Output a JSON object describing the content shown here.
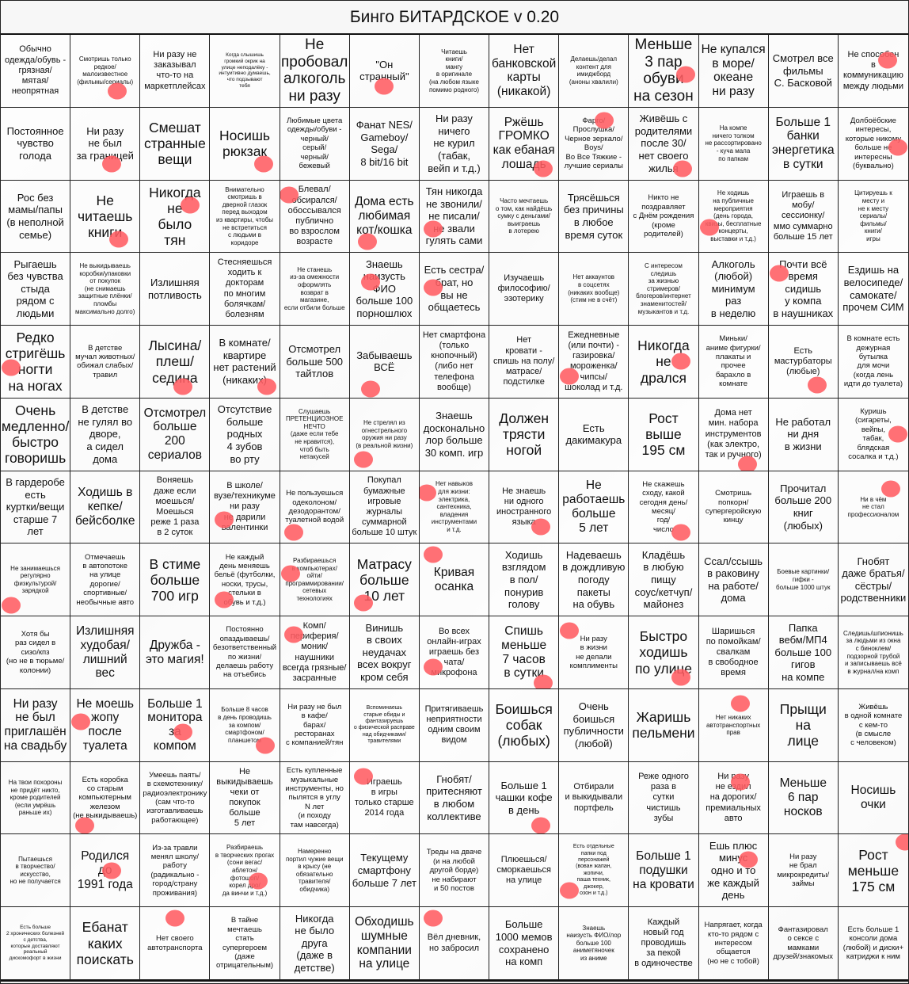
{
  "title": "Бинго БИТАРДСКОЕ v 0.20",
  "stamp_color": "#ff5c62",
  "cells": [
    [
      {
        "text": "Обычно\nодежда/обувь -\nгрязная/\nмятая/\nнеопрятная",
        "marked": false
      },
      {
        "text": "Смотришь только\nредкое/\nмалоизвестное\n(фильмы/сериалы)",
        "marked": true
      },
      {
        "text": "Ни разу не\nзаказывал\nчто-то на\nмаркетплейсах",
        "marked": false
      },
      {
        "text": "Когда слышишь\nгромкий окрик на\nулице неподалёку -\nинтуитивно думаешь,\nчто подзывают\nтебя",
        "marked": false
      },
      {
        "text": "Не\nпробовал\nалкоголь\nни разу",
        "marked": false
      },
      {
        "text": "\"Он странный\"",
        "marked": true
      },
      {
        "text": "Читаешь\nкниги/\nмангу\nв оригинале\n(на любом языке\nпомимо родного)",
        "marked": false
      },
      {
        "text": "Нет\nбанковской\nкарты\n(никакой)",
        "marked": false
      },
      {
        "text": "Делаешь/делал\nконтент для\nимиджборд\n(аноны хвалили)",
        "marked": false
      },
      {
        "text": "Меньше\n3 пар\nобуви\nна сезон",
        "marked": true
      },
      {
        "text": "Не купался\nв море/\nокеане\nни разу",
        "marked": false
      },
      {
        "text": "Смотрел все\nфильмы\nС. Басковой",
        "marked": false
      },
      {
        "text": "Не способен\nв\nкоммуникацию\nмежду людьми",
        "marked": true
      }
    ],
    [
      {
        "text": "Постоянное\nчувство\nголода",
        "marked": false
      },
      {
        "text": "Ни разу\nне был\nза границей",
        "marked": true
      },
      {
        "text": "Смешат\nстранные\nвещи",
        "marked": false
      },
      {
        "text": "Носишь\nрюкзак",
        "marked": true
      },
      {
        "text": "Любимые цвета\nодежды/обуви -\nчерный/\nсерый/\nчерный/\nбежевый",
        "marked": false
      },
      {
        "text": "Фанат NES/\nGameboy/\nSega/\n8 bit/16 bit",
        "marked": false
      },
      {
        "text": "Ни разу\nничего\nне курил\n(табак,\nвейп и т.д.)",
        "marked": false
      },
      {
        "text": "Ржёшь\nГРОМКО\nкак ебаная\nлошадь",
        "marked": true
      },
      {
        "text": "Фарго/\nПрослушка/\nЧерное зеркало/\nBoys/\nВо Все Тяжкие -\nлучшие сериалы",
        "marked": true
      },
      {
        "text": "Живёшь с\nродителями\nпосле 30/\nнет своего\nжилья",
        "marked": true
      },
      {
        "text": "На компе\nничего толком\nне рассортировано\n- куча мала\nпо папкам",
        "marked": false
      },
      {
        "text": "Больше 1\nбанки\nэнергетика\nв сутки",
        "marked": false
      },
      {
        "text": "Долбоёбские\nинтересы,\nкоторые никому\nбольше не\nинтересны\n(буквально)",
        "marked": true
      }
    ],
    [
      {
        "text": "Рос без\nмамы/папы\n(в неполной\nсемье)",
        "marked": false
      },
      {
        "text": "Не\nчитаешь\nкниги",
        "marked": true
      },
      {
        "text": "Никогда\nне\nбыло\nтян",
        "marked": true
      },
      {
        "text": "Внимательно\nсмотришь в\nдверной глазок\nперед выходом\nиз квартиры, чтобы\nне встретиться\nс людьми в\nкоридоре",
        "marked": false
      },
      {
        "text": "Блевал/\nобсирался/\nобоссывался\nпублично\nво взрослом\nвозрасте",
        "marked": true
      },
      {
        "text": "Дома есть\nлюбимая\nкот/кошка",
        "marked": true
      },
      {
        "text": "Тян никогда\nне звонили/\nне писали/\nне звали\nгулять сами",
        "marked": true
      },
      {
        "text": "Часто мечтаешь\nо том, как найдёшь\nсумку с деньгами/\nвыиграешь\nв лотерею",
        "marked": false
      },
      {
        "text": "Трясёшься\nбез причины\nв любое\nвремя суток",
        "marked": false
      },
      {
        "text": "Никто не\nпоздравляет\nс Днём рождения\n(кроме\nродителей)",
        "marked": false
      },
      {
        "text": "Не ходишь\nна публичные\nмероприятия\n(день города,\nквизы, бесплатные\nконцерты,\nвыставки и т.д.)",
        "marked": true
      },
      {
        "text": "Играешь в\nмобу/\nсессионку/\nммо суммарно\nбольше 15 лет",
        "marked": false
      },
      {
        "text": "Цитируешь к\nместу и\nне к месту\nсериалы/\nфильмы/\nкниги/\nигры",
        "marked": false
      }
    ],
    [
      {
        "text": "Рыгаешь\nбез чувства\nстыда\nрядом с\nлюдьми",
        "marked": false
      },
      {
        "text": "Не выкидываешь\nкоробки/упаковки\nот покупок\n(не снимаешь\nзащитные плёнки/\nпломбы\nмаксимально долго)",
        "marked": false
      },
      {
        "text": "Излишняя\nпотливость",
        "marked": false
      },
      {
        "text": "Стесняешься\nходить к\nдокторам\nпо многим\nболячкам/\nболезням",
        "marked": false
      },
      {
        "text": "Не станешь\nиз-за омежности\nоформлять\nвозврат в\nмагазине,\nесли отбили больше",
        "marked": false
      },
      {
        "text": "Знаешь\nнаизусть\nФИО\nбольше 100\nпорношлюх",
        "marked": true
      },
      {
        "text": "Есть сестра/\nбрат, но\nвы не\nобщаетесь",
        "marked": true
      },
      {
        "text": "Изучаешь\nфилософию/\nэзотерику",
        "marked": false
      },
      {
        "text": "Нет аккаунтов\nв соцсетях\n(никаких вообще)\n(стим не в счёт)",
        "marked": false
      },
      {
        "text": "С интересом\nследишь\nза жизнью\nстримеров/\nблогеров/интернет\nзнаменитостей/\nмузыкантов и т.д.",
        "marked": false
      },
      {
        "text": "Алкоголь\n(любой)\nминимум\nраз\nв неделю",
        "marked": false
      },
      {
        "text": "Почти всё\nвремя\nсидишь\nу компа\nв наушниках",
        "marked": true
      },
      {
        "text": "Ездишь на\nвелосипеде/\nсамокате/\nпрочем СИМ",
        "marked": false
      }
    ],
    [
      {
        "text": "Редко\nстригёшь\nногти\nна ногах",
        "marked": true
      },
      {
        "text": "В детстве\nмучал животных/\nобижал слабых/\nтравил",
        "marked": false
      },
      {
        "text": "Лысина/\nплеш/\nседина",
        "marked": true
      },
      {
        "text": "В комнате/\nквартире\nнет растений\n(никаких)",
        "marked": true
      },
      {
        "text": "Отсмотрел\nбольше 500\nтайтлов",
        "marked": false
      },
      {
        "text": "Забываешь\nВСЁ",
        "marked": true
      },
      {
        "text": "Нет смартфона\n(только\nкнопочный)\n(либо нет\nтелефона\nвообще)",
        "marked": false
      },
      {
        "text": "Нет\nкровати -\nспишь на полу/\nматрасе/\nподстилке",
        "marked": false
      },
      {
        "text": "Ежедневные\n(или почти) -\nгазировка/\nмороженка/\nчипсы/\nшоколад и т.д.",
        "marked": true
      },
      {
        "text": "Никогда\nне\nдрался",
        "marked": true
      },
      {
        "text": "Миньки/\nаниме фигурки/\nплакаты и\nпрочее\nбарахло в\nкомнате",
        "marked": false
      },
      {
        "text": "Есть\nмастурбаторы\n(любые)",
        "marked": true
      },
      {
        "text": "В комнате есть\nдежурная\nбутылка\nдля мочи\n(когда лень\nидти до туалета)",
        "marked": false
      }
    ],
    [
      {
        "text": "Очень\nмедленно/\nбыстро\nговоришь",
        "marked": false
      },
      {
        "text": "В детстве\nне гулял во\nдворе,\nа сидел\nдома",
        "marked": false
      },
      {
        "text": "Отсмотрел\nбольше\n200\nсериалов",
        "marked": false
      },
      {
        "text": "Отсутствие\nбольше\nродных\n4 зубов\nво рту",
        "marked": false
      },
      {
        "text": "Слушаешь\nПРЕТЕНЦИОЗНОЕ\nНЕЧТО\n(даже если тебе\nне нравится),\nчтоб быть\nнетакусей",
        "marked": false
      },
      {
        "text": "Не стрелял из\nогнестрельного\nоружия ни разу\n(в реальной жизни)",
        "marked": true
      },
      {
        "text": "Знаешь\nдосконально\nлор больше\n30 комп. игр",
        "marked": false
      },
      {
        "text": "Должен\nтрясти\nногой",
        "marked": false
      },
      {
        "text": "Есть\nдакимакура",
        "marked": false
      },
      {
        "text": "Рост\nвыше\n195 см",
        "marked": false
      },
      {
        "text": "Дома нет\nмин. набора\nинструментов\n(как электро,\nтак и ручного)",
        "marked": true
      },
      {
        "text": "Не работал\nни дня\nв жизни",
        "marked": false
      },
      {
        "text": "Куришь\n(сигареты,\nвейпы,\nтабак,\nблядская\nсосалка и т.д.)",
        "marked": true
      }
    ],
    [
      {
        "text": "В гардеробе\nесть\nкуртки/вещи\nстарше 7\nлет",
        "marked": false
      },
      {
        "text": "Ходишь в\nкепке/\nбейсболке",
        "marked": false
      },
      {
        "text": "Воняешь\nдаже если\nмоешься/\nМоешься\nреже 1 раза\nв 2 суток",
        "marked": false
      },
      {
        "text": "В школе/\nвузе/техникуме\nни разу\nне дарили\nвалентинки",
        "marked": true
      },
      {
        "text": "Не пользуешься\nодеколоном/\nдезодорантом/\nтуалетной водой",
        "marked": true
      },
      {
        "text": "Покупал\nбумажные\nигровые\nжурналы\nсуммарной\nбольше 10 штук",
        "marked": false
      },
      {
        "text": "Нет навыков\nдля жизни:\nэлектрика,\nсантехника,\nвладения\nинструментами\nи т.д.",
        "marked": true
      },
      {
        "text": "Не знаешь\nни одного\nиностранного\nязыка",
        "marked": true
      },
      {
        "text": "Не\nработаешь\nбольше\n5 лет",
        "marked": false
      },
      {
        "text": "Не скажешь\nсходу, какой\nсегодня день/\nмесяц/\nгод/\nчисло",
        "marked": true
      },
      {
        "text": "Смотришь\nпопкорн/\nсупергеройскую\nкинцу",
        "marked": false
      },
      {
        "text": "Прочитал\nбольше 200\nкниг\n(любых)",
        "marked": false
      },
      {
        "text": "Ни в чём\nне стал\nпрофессионалом",
        "marked": true
      }
    ],
    [
      {
        "text": "Не занимаешься\nрегулярно\nфизкультурой/\nзарядкой",
        "marked": true
      },
      {
        "text": "Отмечаешь\nв автопотоке\nна улице\nдорогие/\nспортивные/\nнеобычные авто",
        "marked": false
      },
      {
        "text": "В стиме\nбольше\n700 игр",
        "marked": false
      },
      {
        "text": "Не каждый\nдень меняешь\nбельё (футболки,\nноски, трусы,\nстельки в\nобувь и т.д.)",
        "marked": true
      },
      {
        "text": "Разбираешься\nв компьютерах/\nойти/\nпрограммировании/\nсетевых\nтехнологиях",
        "marked": true
      },
      {
        "text": "Матрасу\nбольше\n10 лет",
        "marked": true
      },
      {
        "text": "Кривая\nосанка",
        "marked": true
      },
      {
        "text": "Ходишь\nвзглядом\nв пол/\nпонурив\nголову",
        "marked": false
      },
      {
        "text": "Надеваешь\nв дождливую\nпогоду\nпакеты\nна обувь",
        "marked": false
      },
      {
        "text": "Кладёшь\nв любую\nпищу\nсоус/кетчуп/\nмайонез",
        "marked": false
      },
      {
        "text": "Ссал/ссышь\nв раковину\nна работе/\nдома",
        "marked": false
      },
      {
        "text": "Боевые картинки/\nгифки -\nбольше 1000 штук",
        "marked": false
      },
      {
        "text": "Гнобят\nдаже братья/\nсёстры/\nродственники",
        "marked": false
      }
    ],
    [
      {
        "text": "Хотя бы\nраз сидел в\nсизо/кпз\n(но не в тюрьме/\nколонии)",
        "marked": false
      },
      {
        "text": "Излишняя\nхудобая/\nлишний\nвес",
        "marked": false
      },
      {
        "text": "Дружба -\nэто магия!",
        "marked": false
      },
      {
        "text": "Постоянно\nопаздываешь/\nбезответственный\nпо жизни/\nделаешь работу\nна отъебись",
        "marked": false
      },
      {
        "text": "Комп/\nпериферия/\nмоник/\nнаушники\nвсегда грязные/\nзасранные",
        "marked": true
      },
      {
        "text": "Винишь\nв своих\nнеудачах\nвсех вокруг\nкром себя",
        "marked": false
      },
      {
        "text": "Во всех\nонлайн-играх\nиграешь без\nчата/\nмикрофона",
        "marked": true
      },
      {
        "text": "Спишь\nменьше\n7 часов\nв сутки",
        "marked": true
      },
      {
        "text": "Ни разу\nв жизни\nне делали\nкомплименты",
        "marked": true
      },
      {
        "text": "Быстро\nходишь\nпо улице",
        "marked": true
      },
      {
        "text": "Шаришься\nпо помойкам/\nсвалкам\nв свободное\nвремя",
        "marked": false
      },
      {
        "text": "Папка\nвебм/МП4\nбольше 100\nгигов\nна компе",
        "marked": false
      },
      {
        "text": "Следишь/шпионишь\nза людьми из окна\nс биноклем/\nподзорной трубой\nи записываешь всё\nв журнал/на комп",
        "marked": false
      }
    ],
    [
      {
        "text": "Ни разу\nне был\nприглашён\nна свадьбу",
        "marked": false
      },
      {
        "text": "Не моешь\nжопу\nпосле\nтуалета",
        "marked": true
      },
      {
        "text": "Больше 1\nмонитора\nза\nкомпом",
        "marked": true
      },
      {
        "text": "Больше 8 часов\nв день проводишь\nза компом/\nсмартфоном/\nпланшетом",
        "marked": true
      },
      {
        "text": "Ни разу не был\nв кафе/\nбарах/\nресторанах\nс компанией/тян",
        "marked": false
      },
      {
        "text": "Вспоминаешь\nстарые обиды и\nфантазируешь\nо физической расправе\nнад обидчиками/\nтравителями",
        "marked": false
      },
      {
        "text": "Притягиваешь\nнеприятности\nодним своим\nвидом",
        "marked": false
      },
      {
        "text": "Боишься\nсобак\n(любых)",
        "marked": false
      },
      {
        "text": "Очень\nбоишься\nпубличности\n(любой)",
        "marked": false
      },
      {
        "text": "Жаришь\nпельмени",
        "marked": false
      },
      {
        "text": "Нет никаких\nавтотранспортных\nправ",
        "marked": true
      },
      {
        "text": "Прыщи\nна\nлице",
        "marked": false
      },
      {
        "text": "Живёшь\nв одной комнате\nс кем-то\n(в смысле\nс человеком)",
        "marked": false
      }
    ],
    [
      {
        "text": "На твои похороны\nне придёт никто,\nкроме родителей\n(если умрёшь\nраньше их)",
        "marked": false
      },
      {
        "text": "Есть коробка\nсо старым\nкомпьютерным\nжелезом\n(не выкидываешь)",
        "marked": true
      },
      {
        "text": "Умеешь паять/\nв схемотехнику/\nрадиоэлектронику\n(сам что-то\nизготавливаешь\nработающее)",
        "marked": false
      },
      {
        "text": "Не\nвыкидываешь\nчеки от\nпокупок\nбольше\n5 лет",
        "marked": false
      },
      {
        "text": "Есть купленные\nмузыкальные\nинструменты, но\nпылятся в углу\nN лет\n(и походу\nтам навсегда)",
        "marked": false
      },
      {
        "text": "Играешь\nв игры\nтолько старше\n2014 года",
        "marked": true
      },
      {
        "text": "Гнобят/\nпритесняют\nв любом\nколлективе",
        "marked": false
      },
      {
        "text": "Больше 1\nчашки кофе\nв день",
        "marked": true
      },
      {
        "text": "Отбирали\nи выкидывали\nпортфель",
        "marked": false
      },
      {
        "text": "Реже одного\nраза в\nсутки\nчистишь\nзубы",
        "marked": false
      },
      {
        "text": "Ни разу\nне ездил\nна дорогих/\nпремиальных\nавто",
        "marked": true
      },
      {
        "text": "Меньше\n6 пар\nносков",
        "marked": false
      },
      {
        "text": "Носишь\nочки",
        "marked": false
      }
    ],
    [
      {
        "text": "Пытаешься\nв творчество/\nискусство,\nно не получается",
        "marked": false
      },
      {
        "text": "Родился\nдо\n1991 года",
        "marked": true
      },
      {
        "text": "Из-за травли\nменял школу/\nработу\n(радикально -\nгород/страну\nпроживания)",
        "marked": false
      },
      {
        "text": "Разбираешь\nв творческих прогах\n(сони вегас/\nаблетон/\nфотошоп/\nкорел дро/\nда винчи и т.д.)",
        "marked": true
      },
      {
        "text": "Намеренно\nпортил чужие вещи\nв крысу (не\nобязательно\nтравителя/\nобидчика)",
        "marked": false
      },
      {
        "text": "Текущему\nсмартфону\nбольше 7 лет",
        "marked": false
      },
      {
        "text": "Треды на дваче\n(и на любой\nдругой борде)\nне набирают\nи 50 постов",
        "marked": false
      },
      {
        "text": "Плюешься/\nсморкаешься\nна улице",
        "marked": false
      },
      {
        "text": "Есть отдельные\nпапки под\nперсонажей\n(вован жапан,\nжопичи,\nпаша техник,\nджокер,\nозон и т.д.)",
        "marked": true
      },
      {
        "text": "Больше 1\nподушки\nна кровати",
        "marked": false
      },
      {
        "text": "Ешь плюс\nминус\nодно и то\nже каждый\nдень",
        "marked": true
      },
      {
        "text": "Ни разу\nне брал\nмикрокредиты/\nзаймы",
        "marked": false
      },
      {
        "text": "Рост\nменьше\n175 см",
        "marked": true
      }
    ],
    [
      {
        "text": "Есть больше\n2 хронических болезней\nс детства,\nкоторые доставляют\nреальный\nдискомофорт в жизни",
        "marked": false
      },
      {
        "text": "Ебанат\nкаких\nпоискать",
        "marked": false
      },
      {
        "text": "Нет своего\nавтотранспорта",
        "marked": true
      },
      {
        "text": "В тайне\nмечтаешь\nстать\nсупергероем\n(даже\nотрицательным)",
        "marked": false
      },
      {
        "text": "Никогда\nне было\nдруга\n(даже в\nдетстве)",
        "marked": false
      },
      {
        "text": "Обходишь\nшумные\nкомпании\nна улице",
        "marked": false
      },
      {
        "text": "Вёл дневник,\nно забросил",
        "marked": true
      },
      {
        "text": "Больше\n1000 мемов\nсохранено\nна комп",
        "marked": false
      },
      {
        "text": "Знаешь\nнаизусть ФИО/лор\nбольше 100\nаниметяночек\nиз аниме",
        "marked": false
      },
      {
        "text": "Каждый\nновый год\nпроводишь\nза пекой\nв одиночестве",
        "marked": false
      },
      {
        "text": "Напрягает, когда\nкто-то рядом с\nинтересом\nобщается\n(но не с тобой)",
        "marked": false
      },
      {
        "text": "Фантазировал\nо сексе с\nмамками\nдрузей/знакомых",
        "marked": false
      },
      {
        "text": "Есть больше 1\nконсоли дома\n(любой) и диски+\nкатриджи к ним",
        "marked": false
      }
    ]
  ]
}
